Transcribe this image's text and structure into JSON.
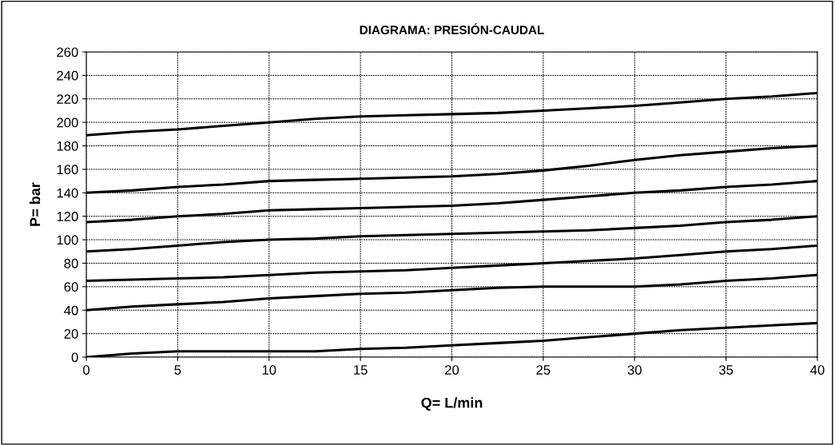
{
  "chart_data": {
    "type": "line",
    "title": "DIAGRAMA: PRESIÓN-CAUDAL",
    "xlabel": "Q= L/min",
    "ylabel": "P= bar",
    "x": [
      0,
      2.5,
      5,
      7.5,
      10,
      12.5,
      15,
      17.5,
      20,
      22.5,
      25,
      27.5,
      30,
      32.5,
      35,
      37.5,
      40
    ],
    "series": [
      {
        "color": "#000000",
        "values": [
          189,
          192,
          194,
          197,
          200,
          203,
          205,
          206,
          207,
          208,
          210,
          212,
          214,
          217,
          220,
          222,
          225
        ]
      },
      {
        "color": "#000000",
        "values": [
          140,
          142,
          145,
          147,
          150,
          151,
          152,
          153,
          154,
          156,
          159,
          163,
          168,
          172,
          175,
          178,
          180
        ]
      },
      {
        "color": "#000000",
        "values": [
          115,
          117,
          120,
          122,
          125,
          126,
          127,
          128,
          129,
          131,
          134,
          137,
          140,
          142,
          145,
          147,
          150
        ]
      },
      {
        "color": "#000000",
        "values": [
          90,
          92,
          95,
          98,
          100,
          101,
          103,
          104,
          105,
          106,
          107,
          108,
          110,
          112,
          115,
          117,
          120
        ]
      },
      {
        "color": "#000000",
        "values": [
          65,
          66,
          67,
          68,
          70,
          72,
          73,
          74,
          76,
          78,
          80,
          82,
          84,
          87,
          90,
          92,
          95
        ]
      },
      {
        "color": "#000000",
        "values": [
          40,
          43,
          45,
          47,
          50,
          52,
          54,
          55,
          57,
          59,
          60,
          60,
          60,
          62,
          65,
          67,
          70
        ]
      },
      {
        "color": "#000000",
        "values": [
          0,
          3,
          5,
          5,
          5,
          5,
          7,
          8,
          10,
          12,
          14,
          17,
          20,
          23,
          25,
          27,
          29
        ]
      }
    ],
    "xlim": [
      0,
      40
    ],
    "xticks": [
      0,
      5,
      10,
      15,
      20,
      25,
      30,
      35,
      40
    ],
    "ylim": [
      0,
      260
    ],
    "yticks": [
      0,
      20,
      40,
      60,
      80,
      100,
      120,
      140,
      160,
      180,
      200,
      220,
      240,
      260
    ],
    "grid": true,
    "line_style": "solid",
    "marker": "none"
  }
}
